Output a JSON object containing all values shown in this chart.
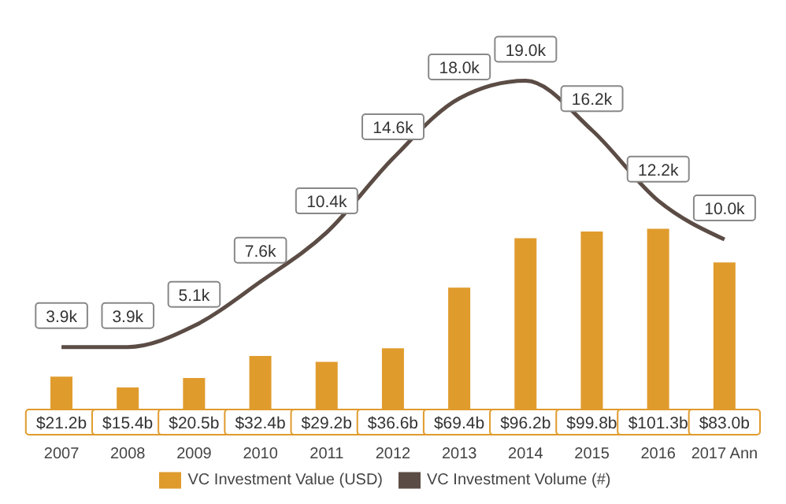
{
  "chart_data": {
    "type": "bar",
    "categories": [
      "2007",
      "2008",
      "2009",
      "2010",
      "2011",
      "2012",
      "2013",
      "2014",
      "2015",
      "2016",
      "2017 Ann"
    ],
    "series": [
      {
        "name": "VC Investment Value (USD)",
        "color": "#e09b2d",
        "values": [
          21.2,
          15.4,
          20.5,
          32.4,
          29.2,
          36.6,
          69.4,
          96.2,
          99.8,
          101.3,
          83.0
        ],
        "value_labels": [
          "$21.2b",
          "$15.4b",
          "$20.5b",
          "$32.4b",
          "$29.2b",
          "$36.6b",
          "$69.4b",
          "$96.2b",
          "$99.8b",
          "$101.3b",
          "$83.0b"
        ]
      },
      {
        "name": "VC Investment Volume (#)",
        "type": "line",
        "axis": "y2",
        "color": "#5b4c45",
        "values": [
          3.9,
          3.9,
          5.1,
          7.6,
          10.4,
          14.6,
          18.0,
          19.0,
          16.2,
          12.2,
          10.0
        ],
        "value_labels": [
          "3.9k",
          "3.9k",
          "5.1k",
          "7.6k",
          "10.4k",
          "14.6k",
          "18.0k",
          "19.0k",
          "16.2k",
          "12.2k",
          "10.0k"
        ]
      }
    ],
    "legend": "bottom",
    "marker": "none",
    "tick_labels": "x"
  }
}
